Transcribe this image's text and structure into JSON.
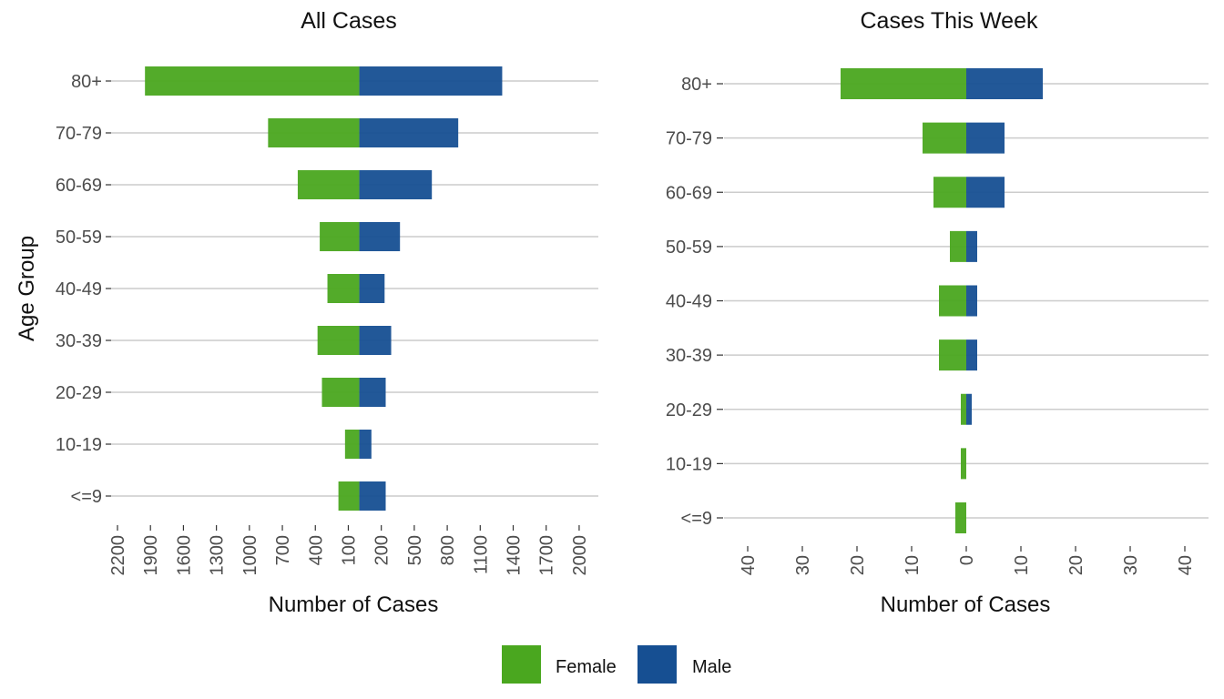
{
  "figure": {
    "shared_ylabel": "Age Group",
    "legend": [
      {
        "label": "Female",
        "color": "#4aa71f"
      },
      {
        "label": "Male",
        "color": "#164f92"
      }
    ]
  },
  "chart_data": [
    {
      "type": "bar",
      "orientation": "horizontal-population-pyramid",
      "title": "All Cases",
      "xlabel": "Number of Cases",
      "ylabel": "Age Group",
      "categories": [
        "80+",
        "70-79",
        "60-69",
        "50-59",
        "40-49",
        "30-39",
        "20-29",
        "10-19",
        "<=9"
      ],
      "series": [
        {
          "name": "Female",
          "values": [
            1950,
            830,
            560,
            360,
            290,
            380,
            340,
            130,
            190
          ]
        },
        {
          "name": "Male",
          "values": [
            1300,
            900,
            660,
            370,
            230,
            290,
            240,
            110,
            240
          ]
        }
      ],
      "xlim": [
        -2200,
        2100
      ],
      "xticks": [
        -2200,
        -1900,
        -1600,
        -1300,
        -1000,
        -700,
        -400,
        -100,
        200,
        500,
        800,
        1100,
        1400,
        1700,
        2000
      ],
      "xtick_labels": [
        "2200",
        "1900",
        "1600",
        "1300",
        "1000",
        "700",
        "400",
        "100",
        "200",
        "500",
        "800",
        "1100",
        "1400",
        "1700",
        "2000"
      ],
      "grid": true,
      "legend": "bottom"
    },
    {
      "type": "bar",
      "orientation": "horizontal-population-pyramid",
      "title": "Cases This Week",
      "xlabel": "Number of Cases",
      "ylabel": "",
      "categories": [
        "80+",
        "70-79",
        "60-69",
        "50-59",
        "40-49",
        "30-39",
        "20-29",
        "10-19",
        "<=9"
      ],
      "series": [
        {
          "name": "Female",
          "values": [
            23,
            8,
            6,
            3,
            5,
            5,
            1,
            1,
            2
          ]
        },
        {
          "name": "Male",
          "values": [
            14,
            7,
            7,
            2,
            2,
            2,
            1,
            0,
            0
          ]
        }
      ],
      "xlim": [
        -42,
        42
      ],
      "xticks": [
        -40,
        -30,
        -20,
        -10,
        0,
        10,
        20,
        30,
        40
      ],
      "xtick_labels": [
        "40",
        "30",
        "20",
        "10",
        "0",
        "10",
        "20",
        "30",
        "40"
      ],
      "grid": true,
      "legend": "bottom"
    }
  ]
}
